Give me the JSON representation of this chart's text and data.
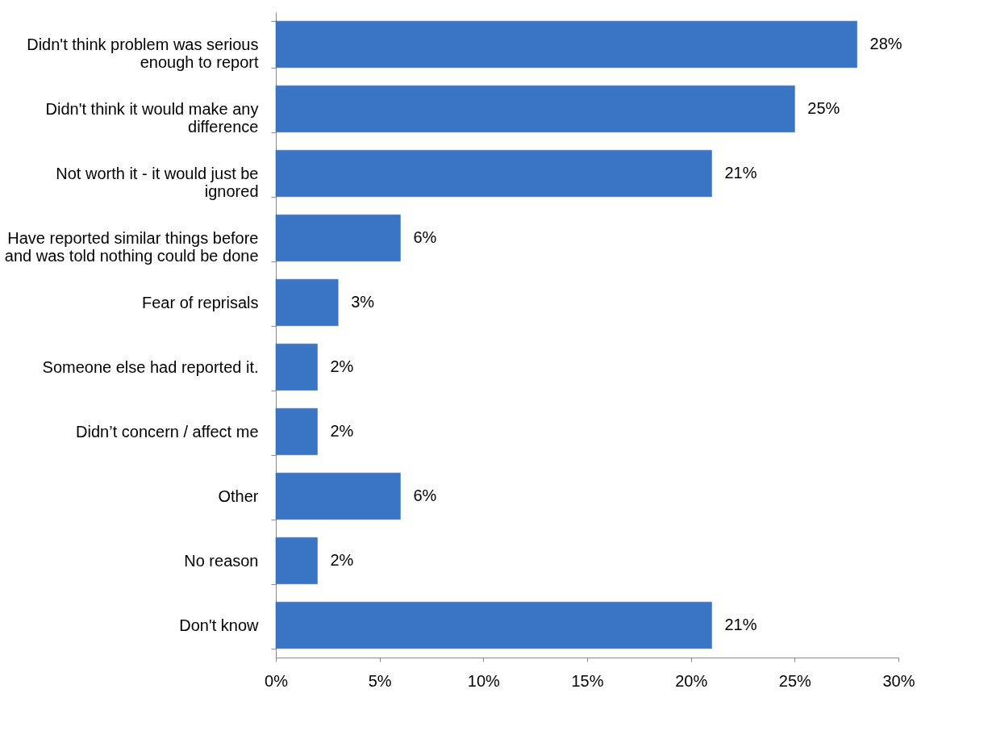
{
  "chart_data": {
    "type": "bar",
    "orientation": "horizontal",
    "categories": [
      "Didn't think problem was serious enough to report",
      "Didn't think it would make any difference",
      "Not worth it - it would just be ignored",
      "Have reported similar things before and was told nothing could be done",
      "Fear of reprisals",
      "Someone else had reported it.",
      "Didn’t concern / affect me",
      "Other",
      "No reason",
      "Don't know"
    ],
    "values": [
      28,
      25,
      21,
      6,
      3,
      2,
      2,
      6,
      2,
      21
    ],
    "value_labels": [
      "28%",
      "25%",
      "21%",
      "6%",
      "3%",
      "2%",
      "2%",
      "6%",
      "2%",
      "21%"
    ],
    "color": "#3a74c4",
    "xlim": [
      0,
      30
    ],
    "xticks": [
      {
        "value": 0,
        "label": "0%"
      },
      {
        "value": 5,
        "label": "5%"
      },
      {
        "value": 10,
        "label": "10%"
      },
      {
        "value": 15,
        "label": "15%"
      },
      {
        "value": 20,
        "label": "20%"
      },
      {
        "value": 25,
        "label": "25%"
      },
      {
        "value": 30,
        "label": "30%"
      }
    ],
    "grid": false
  }
}
